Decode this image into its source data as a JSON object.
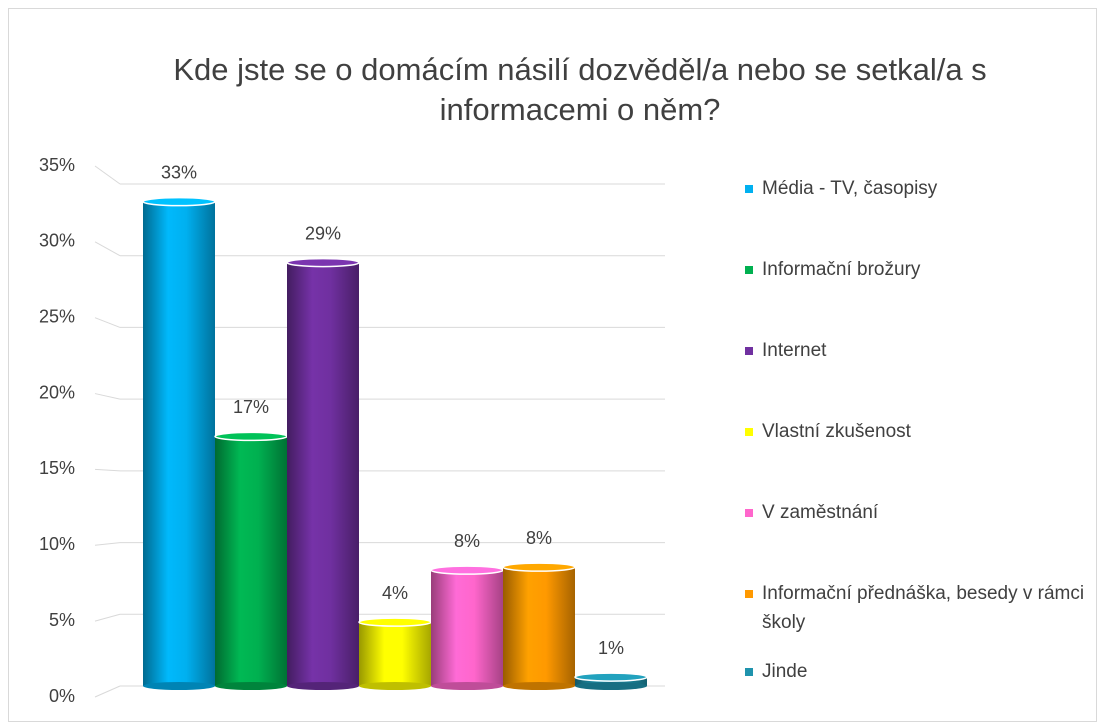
{
  "chart_data": {
    "type": "bar",
    "title": "Kde jste se o domácím násilí dozvěděl/a nebo se setkal/a s informacemi o něm?",
    "series": [
      {
        "name": "Média  - TV, časopisy",
        "color": "#00b0f0",
        "values": [
          32.6
        ],
        "value_labels": [
          "33%"
        ]
      },
      {
        "name": "Informační brožury",
        "color": "#00b050",
        "values": [
          16.8
        ],
        "value_labels": [
          "17%"
        ]
      },
      {
        "name": "Internet",
        "color": "#7030a0",
        "values": [
          28.5
        ],
        "value_labels": [
          "29%"
        ]
      },
      {
        "name": "Vlastní zkušenost",
        "color": "#ffff00",
        "values": [
          4.3
        ],
        "value_labels": [
          "4%"
        ]
      },
      {
        "name": "V zaměstnání",
        "color": "#ff66cc",
        "values": [
          7.8
        ],
        "value_labels": [
          "8%"
        ]
      },
      {
        "name": "Informační přednáška, besedy v rámci školy",
        "color": "#ff9900",
        "values": [
          8.0
        ],
        "value_labels": [
          "8%"
        ]
      },
      {
        "name": "Jinde",
        "color": "#1f93ad",
        "values": [
          0.6
        ],
        "value_labels": [
          "1%"
        ]
      }
    ],
    "ylim": [
      0,
      35
    ],
    "yticks": [
      {
        "value": 0,
        "label": "0%"
      },
      {
        "value": 5,
        "label": "5%"
      },
      {
        "value": 10,
        "label": "10%"
      },
      {
        "value": 15,
        "label": "15%"
      },
      {
        "value": 20,
        "label": "20%"
      },
      {
        "value": 25,
        "label": "25%"
      },
      {
        "value": 30,
        "label": "30%"
      },
      {
        "value": 35,
        "label": "35%"
      }
    ],
    "grid": true,
    "legend": "right"
  }
}
